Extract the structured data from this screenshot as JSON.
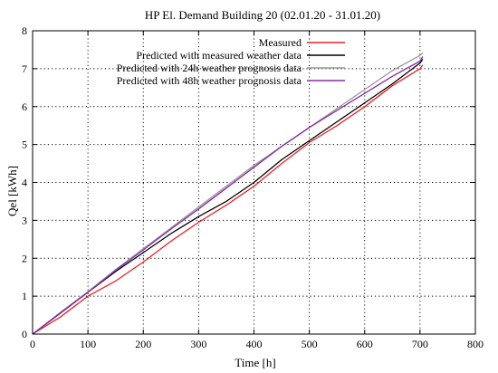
{
  "chart_data": {
    "type": "line",
    "title": "HP El. Demand Building 20 (02.01.20 - 31.01.20)",
    "xlabel": "Time  [h]",
    "ylabel": "Qel [kWh]",
    "xlim": [
      0,
      800
    ],
    "ylim": [
      0,
      8
    ],
    "xticks": [
      0,
      100,
      200,
      300,
      400,
      500,
      600,
      700,
      800
    ],
    "yticks": [
      0,
      1,
      2,
      3,
      4,
      5,
      6,
      7,
      8
    ],
    "grid": true,
    "legend_position": "top-right",
    "series": [
      {
        "name": "Measured",
        "color": "#e8202a",
        "x": [
          0,
          50,
          100,
          150,
          200,
          250,
          300,
          350,
          400,
          450,
          500,
          550,
          600,
          650,
          700,
          705
        ],
        "y": [
          0,
          0.45,
          1.0,
          1.4,
          1.9,
          2.45,
          2.95,
          3.4,
          3.9,
          4.5,
          5.05,
          5.5,
          6.0,
          6.55,
          7.0,
          7.1
        ]
      },
      {
        "name": "Predicted with measured weather data",
        "color": "#000000",
        "x": [
          0,
          50,
          100,
          150,
          200,
          250,
          300,
          350,
          400,
          450,
          500,
          550,
          600,
          650,
          700,
          705
        ],
        "y": [
          0,
          0.55,
          1.1,
          1.65,
          2.15,
          2.65,
          3.1,
          3.5,
          4.0,
          4.6,
          5.1,
          5.6,
          6.1,
          6.6,
          7.15,
          7.25
        ]
      },
      {
        "name": "Predicted with 24h weather prognosis data",
        "color": "#9a9a9a",
        "x": [
          0,
          50,
          100,
          150,
          200,
          250,
          300,
          350,
          400,
          450,
          500,
          550,
          600,
          650,
          700,
          705
        ],
        "y": [
          0,
          0.57,
          1.12,
          1.7,
          2.25,
          2.8,
          3.35,
          3.9,
          4.45,
          4.95,
          5.45,
          5.95,
          6.45,
          6.95,
          7.35,
          7.42
        ]
      },
      {
        "name": "Predicted with 48h weather prognosis data",
        "color": "#8a2aa8",
        "x": [
          0,
          50,
          100,
          150,
          200,
          250,
          300,
          350,
          400,
          450,
          500,
          550,
          600,
          650,
          700,
          705
        ],
        "y": [
          0,
          0.56,
          1.1,
          1.68,
          2.22,
          2.77,
          3.3,
          3.85,
          4.4,
          4.95,
          5.45,
          5.9,
          6.35,
          6.8,
          7.2,
          7.32
        ]
      }
    ]
  }
}
